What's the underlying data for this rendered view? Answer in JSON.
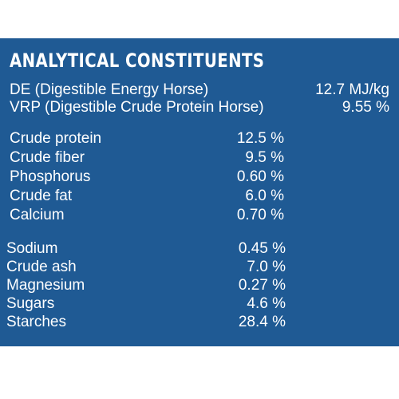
{
  "heading": "ANALYTICAL CONSTITUENTS",
  "energy": [
    {
      "label": "DE (Digestible Energy Horse)",
      "value": "12.7 MJ/kg"
    },
    {
      "label": "VRP (Digestible Crude Protein Horse)",
      "value": "9.55 %"
    }
  ],
  "group1": [
    {
      "label": "Crude protein",
      "value": "12.5 %"
    },
    {
      "label": "Crude fiber",
      "value": "9.5 %"
    },
    {
      "label": "Phosphorus",
      "value": "0.60 %"
    },
    {
      "label": "Crude fat",
      "value": "6.0 %"
    },
    {
      "label": "Calcium",
      "value": "0.70 %"
    }
  ],
  "group2": [
    {
      "label": "Sodium",
      "value": "0.45 %"
    },
    {
      "label": "Crude ash",
      "value": "7.0 %"
    },
    {
      "label": "Magnesium",
      "value": "0.27 %"
    },
    {
      "label": "Sugars",
      "value": "4.6 %"
    },
    {
      "label": "Starches",
      "value": "28.4 %"
    }
  ],
  "colors": {
    "panel": "#1f5a94",
    "text": "#ffffff"
  }
}
